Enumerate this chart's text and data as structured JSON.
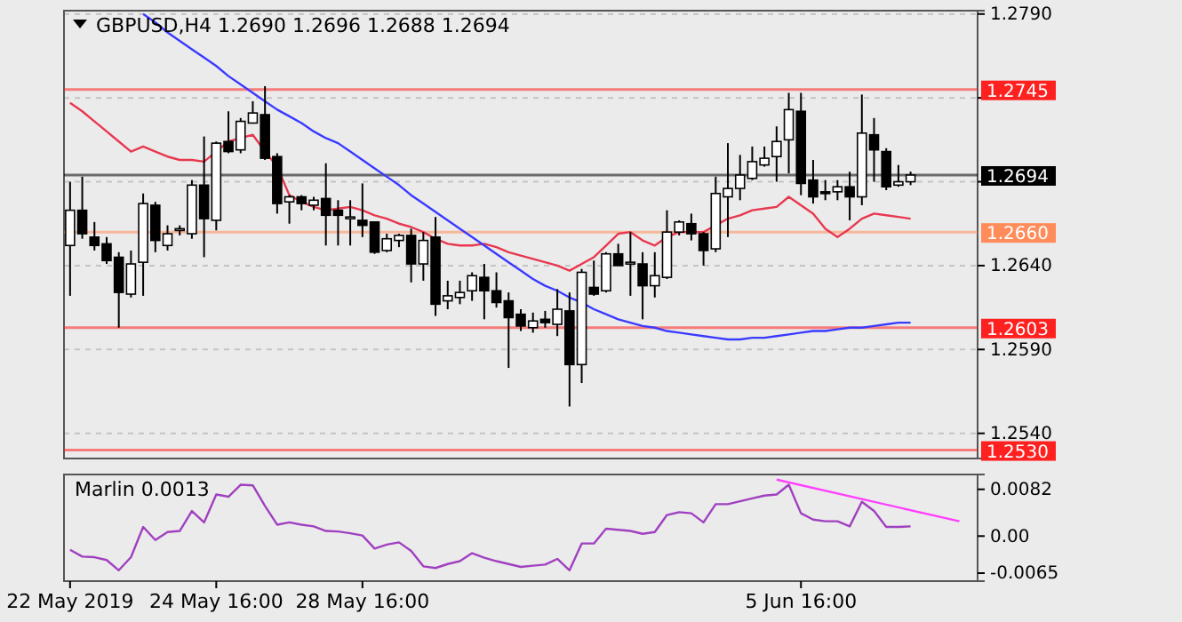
{
  "chart_data": [
    {
      "type": "candlestick",
      "title": "GBPUSD,H4  1.2690 1.2696 1.2688 1.2694",
      "color": "#000000",
      "tick_labels": "y",
      "grid": "y",
      "categories": [
        null,
        null,
        null,
        null,
        null,
        null,
        null,
        null,
        null,
        null,
        null,
        null,
        null,
        null,
        null,
        null,
        null,
        null,
        null,
        null,
        null,
        null,
        null,
        null,
        null,
        null,
        null,
        null,
        null,
        null,
        null,
        null,
        null,
        null,
        null,
        null,
        null,
        null,
        null,
        null,
        null,
        null,
        null,
        null,
        null,
        null,
        null,
        null,
        null,
        null,
        null,
        null,
        null,
        null,
        null,
        null,
        null,
        null,
        null,
        null,
        null,
        null,
        null,
        null,
        null,
        null,
        null,
        null,
        null,
        null,
        null,
        null,
        null,
        null,
        null
      ],
      "ylim": [
        1.2525,
        1.2792
      ],
      "yticks": [
        {
          "value": 1.254,
          "label": "1.2540"
        },
        {
          "value": 1.259,
          "label": "1.2590"
        },
        {
          "value": 1.264,
          "label": "1.2640"
        },
        {
          "value": 1.269,
          "label": null
        },
        {
          "value": 1.274,
          "label": null
        },
        {
          "value": 1.279,
          "label": "1.2790"
        }
      ],
      "ohlc": [
        [
          1.2652,
          1.269,
          1.2622,
          1.2673
        ],
        [
          1.2673,
          1.2693,
          1.2656,
          1.2659
        ],
        [
          1.2657,
          1.2666,
          1.2649,
          1.2652
        ],
        [
          1.2653,
          1.2657,
          1.2641,
          1.2643
        ],
        [
          1.2645,
          1.2648,
          1.2603,
          1.2624
        ],
        [
          1.2623,
          1.2649,
          1.2621,
          1.2641
        ],
        [
          1.2642,
          1.2683,
          1.2622,
          1.2677
        ],
        [
          1.2676,
          1.2678,
          1.2648,
          1.2655
        ],
        [
          1.2652,
          1.2664,
          1.2649,
          1.2659
        ],
        [
          1.2661,
          1.2664,
          1.2658,
          1.2662
        ],
        [
          1.2659,
          1.2691,
          1.2656,
          1.2688
        ],
        [
          1.2688,
          1.2717,
          1.2645,
          1.2668
        ],
        [
          1.2667,
          1.2714,
          1.2661,
          1.2713
        ],
        [
          1.2714,
          1.2732,
          1.2707,
          1.2708
        ],
        [
          1.2709,
          1.2728,
          1.2707,
          1.2726
        ],
        [
          1.2725,
          1.2738,
          1.2725,
          1.2731
        ],
        [
          1.273,
          1.2747,
          1.2703,
          1.2704
        ],
        [
          1.2705,
          1.2707,
          1.2671,
          1.2677
        ],
        [
          1.2678,
          1.2682,
          1.2665,
          1.2681
        ],
        [
          1.2681,
          1.2682,
          1.2673,
          1.2677
        ],
        [
          1.2676,
          1.2681,
          1.2673,
          1.2679
        ],
        [
          1.268,
          1.2701,
          1.2652,
          1.267
        ],
        [
          1.2673,
          1.2679,
          1.2652,
          1.267
        ],
        [
          1.2669,
          1.2679,
          1.2652,
          1.2669
        ],
        [
          1.2667,
          1.2689,
          1.2657,
          1.2664
        ],
        [
          1.2666,
          1.2666,
          1.2647,
          1.2648
        ],
        [
          1.2649,
          1.2659,
          1.2648,
          1.2656
        ],
        [
          1.2655,
          1.2659,
          1.2651,
          1.2658
        ],
        [
          1.2658,
          1.2662,
          1.263,
          1.2641
        ],
        [
          1.2641,
          1.266,
          1.2631,
          1.2655
        ],
        [
          1.2657,
          1.2669,
          1.261,
          1.2617
        ],
        [
          1.2619,
          1.2631,
          1.2614,
          1.2622
        ],
        [
          1.2621,
          1.2631,
          1.2617,
          1.2624
        ],
        [
          1.2625,
          1.2636,
          1.2619,
          1.2634
        ],
        [
          1.2633,
          1.2641,
          1.2608,
          1.2625
        ],
        [
          1.2625,
          1.2636,
          1.2615,
          1.2618
        ],
        [
          1.2619,
          1.2624,
          1.2579,
          1.2609
        ],
        [
          1.2611,
          1.2614,
          1.2601,
          1.2604
        ],
        [
          1.2603,
          1.2612,
          1.26,
          1.2607
        ],
        [
          1.2608,
          1.2613,
          1.2603,
          1.2606
        ],
        [
          1.2605,
          1.2626,
          1.2598,
          1.2614
        ],
        [
          1.2613,
          1.2624,
          1.2556,
          1.2581
        ],
        [
          1.2581,
          1.2638,
          1.257,
          1.2636
        ],
        [
          1.2627,
          1.2643,
          1.2622,
          1.2623
        ],
        [
          1.2625,
          1.2648,
          1.2624,
          1.2647
        ],
        [
          1.2647,
          1.2653,
          1.264,
          1.264
        ],
        [
          1.2642,
          1.266,
          1.2622,
          1.2642
        ],
        [
          1.2641,
          1.2648,
          1.2608,
          1.2628
        ],
        [
          1.2628,
          1.2648,
          1.2621,
          1.2634
        ],
        [
          1.2633,
          1.2673,
          1.2632,
          1.266
        ],
        [
          1.266,
          1.2667,
          1.2658,
          1.2666
        ],
        [
          1.2665,
          1.2671,
          1.2655,
          1.2659
        ],
        [
          1.2659,
          1.266,
          1.264,
          1.2649
        ],
        [
          1.265,
          1.2693,
          1.2648,
          1.2683
        ],
        [
          1.2681,
          1.2713,
          1.2657,
          1.2686
        ],
        [
          1.2686,
          1.2706,
          1.2679,
          1.2694
        ],
        [
          1.2692,
          1.2711,
          1.2691,
          1.2702
        ],
        [
          1.27,
          1.2711,
          1.2699,
          1.2704
        ],
        [
          1.2705,
          1.2723,
          1.269,
          1.2714
        ],
        [
          1.2715,
          1.2743,
          1.2695,
          1.2733
        ],
        [
          1.2732,
          1.2743,
          1.2682,
          1.2689
        ],
        [
          1.2691,
          1.2703,
          1.2677,
          1.2681
        ],
        [
          1.2684,
          1.2691,
          1.2679,
          1.2683
        ],
        [
          1.2684,
          1.2691,
          1.2679,
          1.2687
        ],
        [
          1.2687,
          1.2696,
          1.2667,
          1.2681
        ],
        [
          1.2681,
          1.2742,
          1.2676,
          1.2719
        ],
        [
          1.2718,
          1.2728,
          1.269,
          1.2709
        ],
        [
          1.2708,
          1.271,
          1.2685,
          1.2687
        ],
        [
          1.2688,
          1.27,
          1.2687,
          1.269
        ],
        [
          1.269,
          1.2696,
          1.2688,
          1.2694
        ],
        null,
        null,
        null,
        null,
        null
      ],
      "series": [
        {
          "type": "line",
          "color": "#e8384f",
          "values": [
            1.2737,
            1.2732,
            1.2726,
            1.272,
            1.2714,
            1.2708,
            1.2711,
            1.2708,
            1.2705,
            1.2703,
            1.2703,
            1.2702,
            1.2708,
            1.2714,
            1.2716,
            1.2718,
            1.2708,
            1.2699,
            1.2682,
            1.2678,
            1.2675,
            1.2673,
            1.2674,
            1.2675,
            1.2673,
            1.267,
            1.2668,
            1.2665,
            1.2663,
            1.266,
            1.2656,
            1.2653,
            1.2652,
            1.2652,
            1.2653,
            1.2651,
            1.2648,
            1.2646,
            1.2644,
            1.2642,
            1.264,
            1.2637,
            1.2641,
            1.2645,
            1.2652,
            1.2659,
            1.266,
            1.2655,
            1.2652,
            1.2657,
            1.266,
            1.266,
            1.266,
            1.2664,
            1.2668,
            1.267,
            1.2673,
            1.2674,
            1.2675,
            1.2681,
            1.2676,
            1.2671,
            1.2662,
            1.2657,
            1.2662,
            1.2668,
            1.2671,
            1.267,
            1.2669,
            1.2668,
            null,
            null,
            null,
            null,
            null
          ]
        },
        {
          "type": "line",
          "color": "#3a3aff",
          "values": [
            null,
            null,
            null,
            null,
            null,
            null,
            1.279,
            1.2785,
            1.2779,
            1.2774,
            1.2769,
            1.2764,
            1.2759,
            1.2753,
            1.2748,
            1.2743,
            1.2738,
            1.2733,
            1.2729,
            1.2725,
            1.272,
            1.2716,
            1.2713,
            1.2708,
            1.2703,
            1.2698,
            1.2693,
            1.2688,
            1.2682,
            1.2677,
            1.2672,
            1.2667,
            1.2662,
            1.2657,
            1.2652,
            1.2647,
            1.2642,
            1.2637,
            1.2632,
            1.2628,
            1.2625,
            1.2621,
            1.2618,
            1.2614,
            1.2611,
            1.2608,
            1.2606,
            1.2604,
            1.2603,
            1.2601,
            1.26,
            1.2599,
            1.2598,
            1.2597,
            1.2596,
            1.2596,
            1.2597,
            1.2597,
            1.2598,
            1.2599,
            1.26,
            1.2601,
            1.2601,
            1.2602,
            1.2603,
            1.2603,
            1.2604,
            1.2605,
            1.2606,
            1.2606,
            null,
            null,
            null,
            null,
            null
          ]
        }
      ],
      "ref_lines": [
        {
          "axis": "y",
          "value": 1.2745,
          "label": "1.2745",
          "color": "#ff2020"
        },
        {
          "axis": "y",
          "value": 1.2694,
          "label": "1.2694",
          "color": "#000000"
        },
        {
          "axis": "y",
          "value": 1.266,
          "label": "1.2660",
          "color": "#ff8c5a"
        },
        {
          "axis": "y",
          "value": 1.2603,
          "label": "1.2603",
          "color": "#ff2020"
        },
        {
          "axis": "y",
          "value": 1.253,
          "label": "1.2530",
          "color": "#ff2020"
        }
      ]
    },
    {
      "type": "line",
      "title": "Marlin 0.0013",
      "categories": [
        "22 May 2019",
        null,
        null,
        null,
        null,
        null,
        null,
        null,
        null,
        null,
        null,
        null,
        "24 May 16:00",
        null,
        null,
        null,
        null,
        null,
        null,
        null,
        null,
        null,
        null,
        null,
        "28 May 16:00",
        null,
        null,
        null,
        null,
        null,
        null,
        null,
        null,
        null,
        null,
        null,
        null,
        null,
        null,
        null,
        null,
        null,
        null,
        null,
        null,
        null,
        null,
        null,
        null,
        null,
        null,
        null,
        null,
        null,
        null,
        null,
        null,
        null,
        null,
        null,
        "5 Jun 16:00",
        null,
        null,
        null,
        null,
        null,
        null,
        null,
        null,
        null,
        null,
        null,
        null,
        null,
        null
      ],
      "ylim": [
        -0.0079,
        0.0108
      ],
      "yticks": [
        {
          "value": -0.0065,
          "label": "-0.0065"
        },
        {
          "value": 0,
          "label": "0.00"
        },
        {
          "value": 0.0082,
          "label": "0.0082"
        }
      ],
      "series": [
        {
          "color": "#a040c0",
          "values": [
            -0.0024,
            -0.0036,
            -0.0037,
            -0.0042,
            -0.006,
            -0.0037,
            0.0016,
            -0.0007,
            0.0007,
            0.0009,
            0.0044,
            0.0024,
            0.0073,
            0.0069,
            0.009,
            0.0089,
            0.0053,
            0.002,
            0.0024,
            0.002,
            0.0017,
            0.0009,
            0.0008,
            0.0005,
            0.0001,
            -0.0022,
            -0.0015,
            -0.0011,
            -0.0026,
            -0.0053,
            -0.0056,
            -0.0049,
            -0.0044,
            -0.003,
            -0.0038,
            -0.0044,
            -0.0049,
            -0.0054,
            -0.0052,
            -0.005,
            -0.004,
            -0.006,
            -0.0013,
            -0.0013,
            0.0013,
            0.0011,
            0.0009,
            0.0004,
            0.0007,
            0.0037,
            0.0042,
            0.004,
            0.0024,
            0.0056,
            0.0056,
            0.0061,
            0.0066,
            0.0071,
            0.0073,
            0.009,
            0.004,
            0.0029,
            0.0026,
            0.0026,
            0.0017,
            0.006,
            0.0044,
            0.0016,
            0.0016,
            0.0017,
            null,
            null,
            null,
            null,
            null
          ]
        },
        {
          "type": "line",
          "color": "#ff40ff",
          "values": [
            null,
            null,
            null,
            null,
            null,
            null,
            null,
            null,
            null,
            null,
            null,
            null,
            null,
            null,
            null,
            null,
            null,
            null,
            null,
            null,
            null,
            null,
            null,
            null,
            null,
            null,
            null,
            null,
            null,
            null,
            null,
            null,
            null,
            null,
            null,
            null,
            null,
            null,
            null,
            null,
            null,
            null,
            null,
            null,
            null,
            null,
            null,
            null,
            null,
            null,
            null,
            null,
            null,
            null,
            null,
            null,
            null,
            null,
            0.0099,
            null,
            null,
            null,
            null,
            null,
            null,
            null,
            null,
            null,
            null,
            null,
            null,
            null,
            null,
            0.0026,
            null
          ]
        }
      ]
    }
  ]
}
